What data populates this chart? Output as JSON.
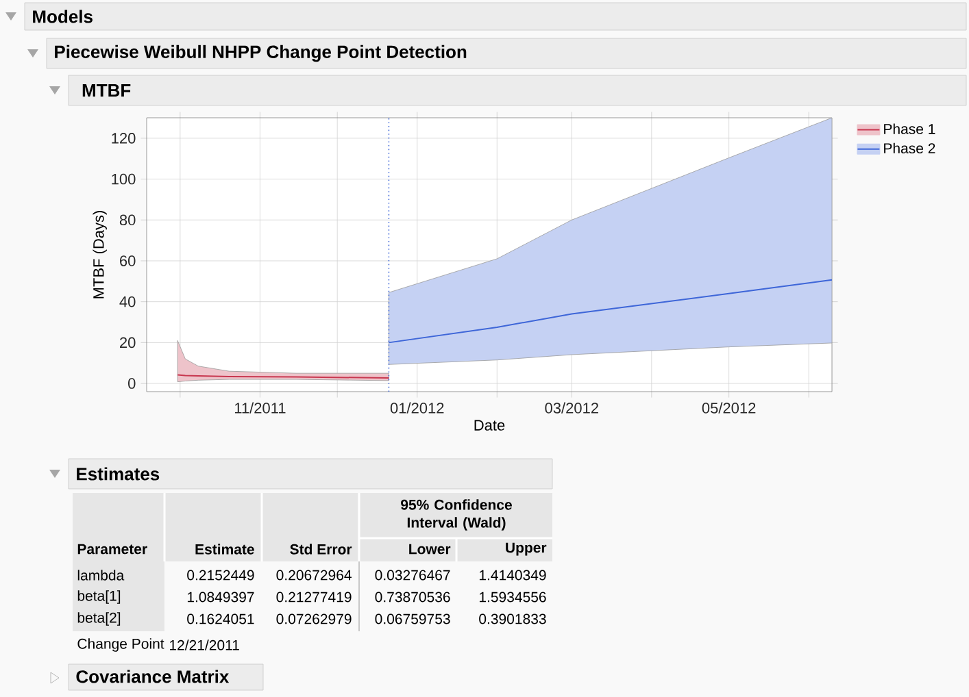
{
  "chart_data": {
    "type": "line",
    "title": "MTBF",
    "xlabel": "Date",
    "ylabel": "MTBF (Days)",
    "series": [
      {
        "name": "Phase 1",
        "color": "#c8374f",
        "x": [
          "2011-09-30",
          "2011-10-03",
          "2011-10-08",
          "2011-10-20",
          "2011-11-15",
          "2011-12-21"
        ],
        "values": [
          4.2,
          3.9,
          3.7,
          3.4,
          3.2,
          2.7
        ],
        "lower": [
          0.8,
          1.2,
          1.6,
          2,
          2,
          1.4
        ],
        "upper": [
          21,
          12,
          8.5,
          6,
          5,
          5
        ]
      },
      {
        "name": "Phase 2",
        "color": "#3e66d8",
        "x": [
          "2011-12-21",
          "2012-02-01",
          "2012-03-01",
          "2012-05-01",
          "2012-06-10"
        ],
        "values": [
          20,
          27.5,
          34,
          44,
          50.7
        ],
        "lower": [
          9.3,
          11.5,
          14.1,
          17.9,
          19.8
        ],
        "upper": [
          44.5,
          61,
          80,
          110.4,
          130
        ]
      }
    ],
    "xlim": [
      "2011-09-18",
      "2012-06-10"
    ],
    "ylim": [
      -4,
      130
    ],
    "xticks": [
      {
        "value": "2011-10-01",
        "label": null
      },
      {
        "value": "2011-11-01",
        "label": "11/2011"
      },
      {
        "value": "2011-12-01",
        "label": null
      },
      {
        "value": "2012-01-01",
        "label": "01/2012"
      },
      {
        "value": "2012-02-01",
        "label": null
      },
      {
        "value": "2012-03-01",
        "label": "03/2012"
      },
      {
        "value": "2012-04-01",
        "label": null
      },
      {
        "value": "2012-05-01",
        "label": "05/2012"
      },
      {
        "value": "2012-06-01",
        "label": null
      }
    ],
    "yticks": [
      0,
      20,
      40,
      60,
      80,
      100,
      120
    ],
    "ref_lines": [
      {
        "axis": "x",
        "value": "2011-12-21",
        "color": "#3e66d8",
        "line_style": "dotted"
      }
    ],
    "grid": true,
    "legend": "top right",
    "marker": "none",
    "line_style": "solid",
    "annotations": [
      "Models",
      "Piecewise Weibull NHPP Change Point Detection",
      "Estimates",
      "Parameter",
      "Estimate",
      "Std Error",
      "95% Confidence Interval (Wald)",
      "Lower",
      "Upper",
      "lambda",
      "0.2152449",
      "0.20672964",
      "0.03276467",
      "1.4140349",
      "beta[1]",
      "1.0849397",
      "0.21277419",
      "0.73870536",
      "1.5934556",
      "beta[2]",
      "0.1624051",
      "0.07262979",
      "0.06759753",
      "0.3901833",
      "Change Point",
      "12/21/2011",
      "Covariance Matrix"
    ]
  }
}
